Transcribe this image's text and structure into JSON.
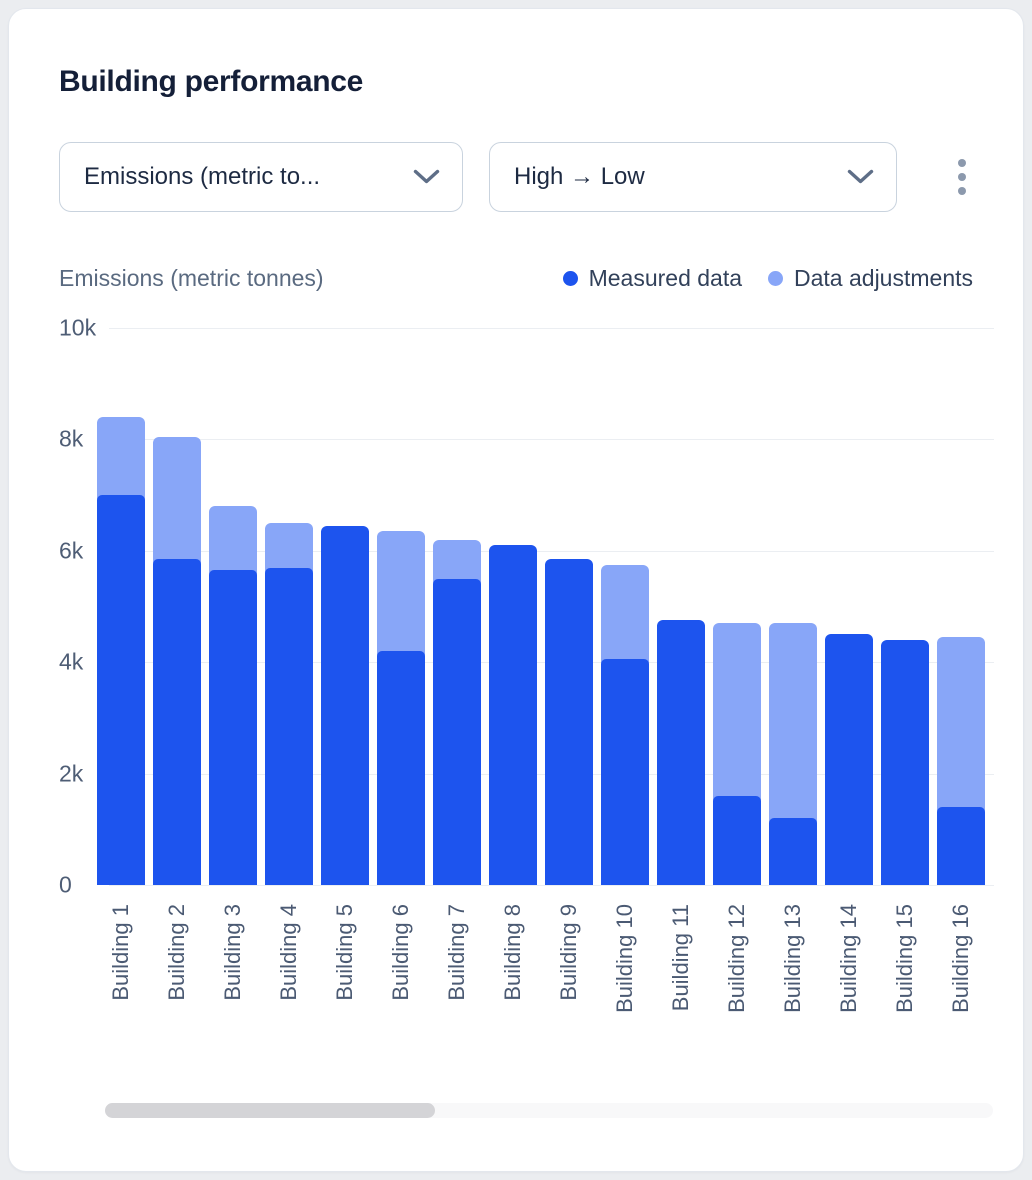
{
  "header": {
    "title": "Building performance"
  },
  "controls": {
    "metric_dropdown": {
      "value": "Emissions (metric to..."
    },
    "sort_dropdown": {
      "value": "High → Low"
    },
    "kebab_menu": "more-options"
  },
  "chart_header": {
    "axis_title": "Emissions (metric tonnes)",
    "legend": [
      {
        "label": "Measured data",
        "color": "#1d54ee"
      },
      {
        "label": "Data adjustments",
        "color": "#88a6f8"
      }
    ]
  },
  "chart_data": {
    "type": "bar",
    "stacked": true,
    "title": "Building performance",
    "ylabel": "Emissions (metric tonnes)",
    "categories": [
      "Building 1",
      "Building 2",
      "Building 3",
      "Building 4",
      "Building 5",
      "Building 6",
      "Building 7",
      "Building 8",
      "Building 9",
      "Building 10",
      "Building 11",
      "Building 12",
      "Building 13",
      "Building 14",
      "Building 15",
      "Building 16"
    ],
    "series": [
      {
        "name": "Measured data",
        "color": "#1d54ee",
        "values": [
          7000,
          5850,
          5650,
          5700,
          6450,
          4200,
          5500,
          6100,
          5850,
          4050,
          4750,
          1600,
          1200,
          4500,
          4400,
          1400
        ]
      },
      {
        "name": "Data adjustments",
        "color": "#88a6f8",
        "values": [
          1400,
          2200,
          1150,
          800,
          0,
          2150,
          700,
          0,
          0,
          1700,
          0,
          3100,
          3500,
          0,
          0,
          3050
        ]
      }
    ],
    "ylim": [
      0,
      10000
    ],
    "yticks": [
      {
        "label": "10k",
        "value": 10000
      },
      {
        "label": "8k",
        "value": 8000
      },
      {
        "label": "6k",
        "value": 6000
      },
      {
        "label": "4k",
        "value": 4000
      },
      {
        "label": "2k",
        "value": 2000
      },
      {
        "label": "0",
        "value": 0
      }
    ],
    "grid": true,
    "legend_position": "top-right"
  },
  "colors": {
    "measured": "#1d54ee",
    "adjustments": "#88a6f8",
    "grid": "#ebeef2"
  },
  "scrollbar": {
    "position": "left"
  }
}
